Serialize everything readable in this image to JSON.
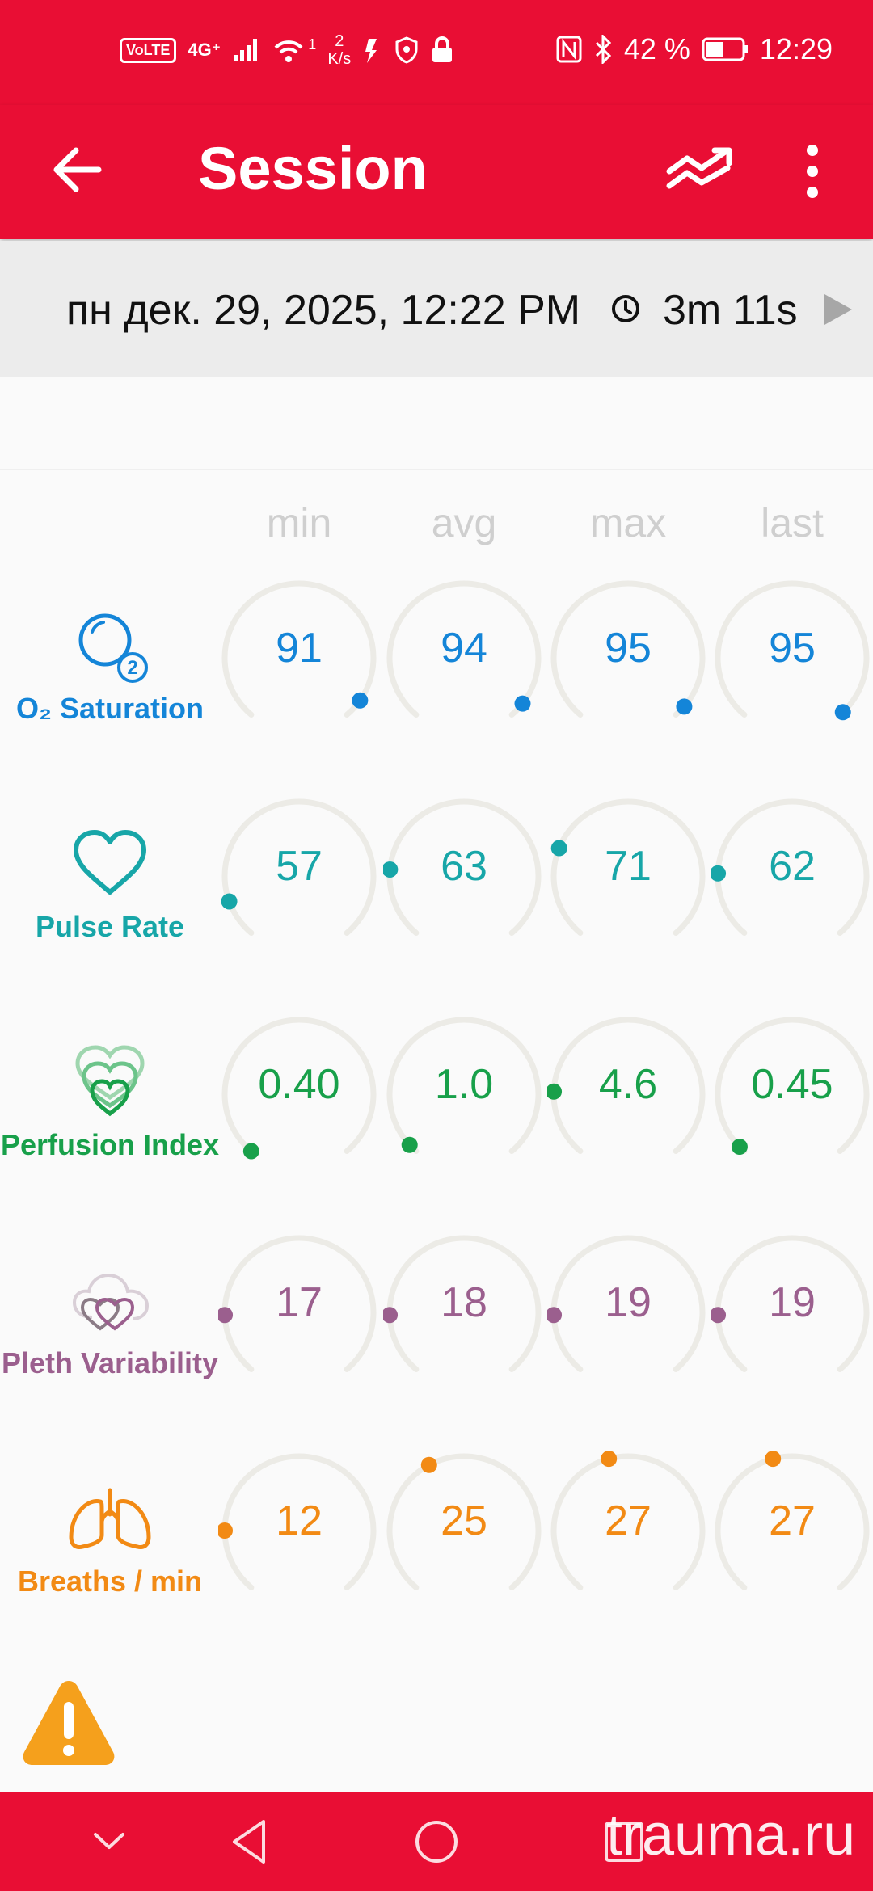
{
  "status_bar": {
    "volte": "VoLTE",
    "network": "4G⁺",
    "wifi_num": "1",
    "speed_value": "2",
    "speed_unit": "K/s",
    "battery_percent": "42 %",
    "time": "12:29"
  },
  "app_bar": {
    "title": "Session"
  },
  "session": {
    "date": "пн дек. 29, 2025, 12:22 PM",
    "duration": "3m 11s"
  },
  "columns": [
    "min",
    "avg",
    "max",
    "last"
  ],
  "metrics": [
    {
      "label": "O₂ Saturation",
      "icon": "o2-bubble-icon",
      "color": "#1485d8",
      "values": [
        "91",
        "94",
        "95",
        "95"
      ],
      "dot_angles": [
        125,
        128,
        131,
        137
      ]
    },
    {
      "label": "Pulse Rate",
      "icon": "heart-icon",
      "color": "#17a6a8",
      "values": [
        "57",
        "63",
        "71",
        "62"
      ],
      "dot_angles": [
        -110,
        -85,
        -68,
        -88
      ]
    },
    {
      "label": "Perfusion Index",
      "icon": "layered-hearts-icon",
      "color": "#18a04a",
      "values": [
        "0.40",
        "1.0",
        "4.6",
        "0.45"
      ],
      "dot_angles": [
        -140,
        -133,
        -88,
        -135
      ]
    },
    {
      "label": "Pleth Variability",
      "icon": "cloud-hearts-icon",
      "color": "#9b5f8e",
      "values": [
        "17",
        "18",
        "19",
        "19"
      ],
      "dot_angles": [
        -92,
        -92,
        -92,
        -92
      ]
    },
    {
      "label": "Breaths / min",
      "icon": "lungs-icon",
      "color": "#f28a14",
      "values": [
        "12",
        "25",
        "27",
        "27"
      ],
      "dot_angles": [
        -90,
        -28,
        -15,
        -15
      ]
    }
  ],
  "watermark": "trauma.ru",
  "colors": {
    "accent": "#e90e34",
    "alert": "#f5a01c"
  }
}
